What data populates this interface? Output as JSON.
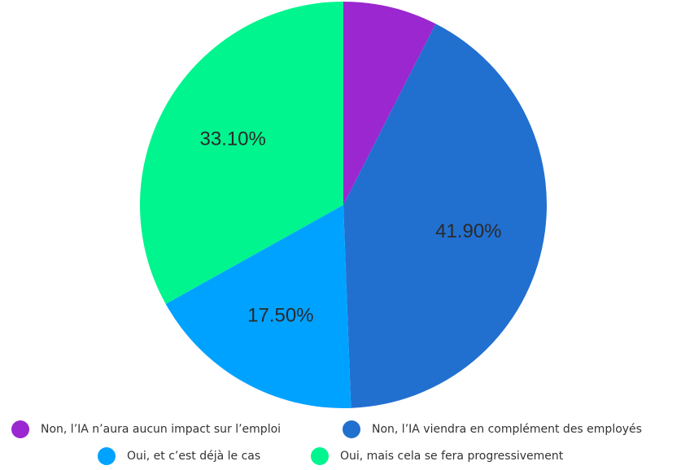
{
  "chart_data": {
    "type": "pie",
    "categories": [
      "Non, l’IA n’aura aucun impact sur l’emploi",
      "Non, l’IA viendra en complément des employés",
      "Oui, et c’est déjà le cas",
      "Oui, mais cela se fera progressivement"
    ],
    "values": [
      7.5,
      41.9,
      17.5,
      33.1
    ],
    "value_labels": [
      null,
      "41.90%",
      "17.50%",
      "33.10%"
    ],
    "colors": [
      "#9b27d0",
      "#2170d0",
      "#00a2ff",
      "#00f58f"
    ]
  }
}
